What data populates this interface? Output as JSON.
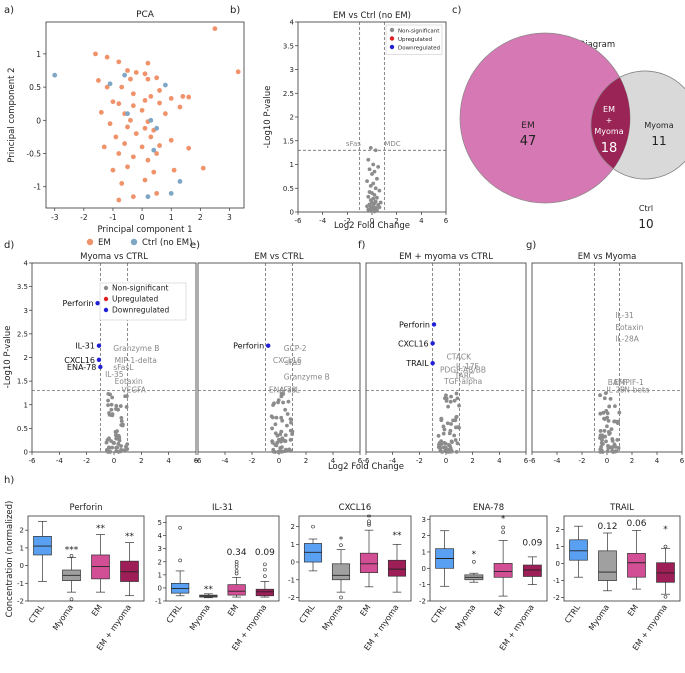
{
  "panel_letters": [
    "a)",
    "b)",
    "c)",
    "d)",
    "e)",
    "f)",
    "g)",
    "h)"
  ],
  "colors": {
    "em": "#f0926a",
    "ctrl_pca": "#7ea7c6",
    "nonsig": "#8c8c8c",
    "up": "#e02020",
    "down": "#1f1fd6",
    "venn_em": "#d678b3",
    "venn_overlap": "#9b2457",
    "venn_myoma": "#d9d9d9",
    "box_ctrl": "#5aa0f2",
    "box_myoma": "#a0a0a0",
    "box_em": "#d24f96",
    "box_emmyoma": "#9e1e57"
  },
  "pca": {
    "title": "PCA",
    "xlabel": "Principal component 1",
    "ylabel": "Principal component 2",
    "xticks": [
      -3,
      -2,
      -1,
      0,
      1,
      2,
      3
    ],
    "yticks": [
      1.0,
      0.5,
      0.0,
      -0.5,
      -1.0
    ],
    "xlim": [
      -3.3,
      3.5
    ],
    "ylim": [
      -1.32,
      1.48
    ],
    "legend": [
      "EM",
      "Ctrl (no EM)"
    ],
    "em_points": [
      [
        2.5,
        1.38
      ],
      [
        -1.6,
        1.0
      ],
      [
        -1.2,
        0.95
      ],
      [
        -0.8,
        0.88
      ],
      [
        0.2,
        0.86
      ],
      [
        -0.5,
        0.75
      ],
      [
        -0.2,
        0.72
      ],
      [
        0.1,
        0.7
      ],
      [
        3.3,
        0.73
      ],
      [
        -1.5,
        0.6
      ],
      [
        -1.2,
        0.5
      ],
      [
        -0.4,
        0.62
      ],
      [
        0.5,
        0.64
      ],
      [
        0.2,
        0.62
      ],
      [
        -0.7,
        0.5
      ],
      [
        0.6,
        0.45
      ],
      [
        -0.3,
        0.4
      ],
      [
        0.3,
        0.36
      ],
      [
        1.4,
        0.36
      ],
      [
        1.6,
        0.35
      ],
      [
        1.0,
        0.33
      ],
      [
        -1.0,
        0.28
      ],
      [
        -0.8,
        0.25
      ],
      [
        -0.3,
        0.22
      ],
      [
        0.1,
        0.3
      ],
      [
        0.6,
        0.26
      ],
      [
        1.3,
        0.2
      ],
      [
        -1.4,
        0.12
      ],
      [
        -0.6,
        0.1
      ],
      [
        0.0,
        0.15
      ],
      [
        0.8,
        0.1
      ],
      [
        -0.4,
        0.0
      ],
      [
        0.2,
        -0.02
      ],
      [
        -1.1,
        -0.05
      ],
      [
        -0.5,
        -0.1
      ],
      [
        0.1,
        -0.12
      ],
      [
        0.4,
        -0.15
      ],
      [
        -0.9,
        -0.25
      ],
      [
        -0.2,
        -0.2
      ],
      [
        0.3,
        -0.25
      ],
      [
        1.0,
        -0.3
      ],
      [
        -1.3,
        -0.4
      ],
      [
        -0.6,
        -0.35
      ],
      [
        0.0,
        -0.4
      ],
      [
        0.6,
        -0.38
      ],
      [
        1.6,
        -0.42
      ],
      [
        -0.8,
        -0.5
      ],
      [
        -0.3,
        -0.55
      ],
      [
        0.2,
        -0.6
      ],
      [
        -1.0,
        -0.75
      ],
      [
        -0.5,
        -0.7
      ],
      [
        0.4,
        -0.78
      ],
      [
        -0.7,
        -0.95
      ],
      [
        0.1,
        -0.9
      ],
      [
        0.5,
        -1.1
      ],
      [
        -0.3,
        -1.15
      ],
      [
        -0.8,
        -1.2
      ],
      [
        2.1,
        -0.72
      ],
      [
        1.1,
        -0.75
      ],
      [
        0.5,
        -0.5
      ]
    ],
    "ctrl_points": [
      [
        -3.0,
        0.68
      ],
      [
        -0.6,
        0.68
      ],
      [
        0.8,
        0.53
      ],
      [
        -0.5,
        0.1
      ],
      [
        0.3,
        0.0
      ],
      [
        0.5,
        -0.12
      ],
      [
        0.4,
        -0.45
      ],
      [
        1.3,
        -0.92
      ],
      [
        1.0,
        -1.1
      ],
      [
        0.2,
        -1.15
      ],
      [
        -1.1,
        0.55
      ]
    ]
  },
  "volcano_b": {
    "title": "EM vs Ctrl (no EM)",
    "xlabel": "Log2 Fold Change",
    "ylabel": "-Log10 P-value",
    "xticks": [
      -6,
      -4,
      -2,
      0,
      2,
      4,
      6
    ],
    "yticks": [
      0.0,
      0.5,
      1.0,
      1.5,
      2.0,
      2.5,
      3.0,
      3.5,
      4.0
    ],
    "xlim": [
      -6,
      6
    ],
    "ylim": [
      0,
      4.0
    ],
    "threshold_y": 1.3,
    "threshold_x": [
      -1,
      1
    ],
    "legend": [
      "Non-significant",
      "Upregulated",
      "Downregulated"
    ],
    "labels": [
      {
        "text": "sFas",
        "x": -0.9,
        "y": 1.35
      },
      {
        "text": "MDC",
        "x": 1.0,
        "y": 1.35
      }
    ],
    "points": [
      [
        -0.1,
        1.35
      ],
      [
        0.3,
        1.3
      ],
      [
        -0.3,
        1.1
      ],
      [
        0.1,
        1.0
      ],
      [
        0.5,
        0.95
      ],
      [
        -0.2,
        0.9
      ],
      [
        0.2,
        0.85
      ],
      [
        0.0,
        0.8
      ],
      [
        0.4,
        0.7
      ],
      [
        -0.4,
        0.65
      ],
      [
        0.1,
        0.6
      ],
      [
        -0.1,
        0.55
      ],
      [
        0.3,
        0.5
      ],
      [
        0.6,
        0.45
      ],
      [
        -0.2,
        0.42
      ],
      [
        0.0,
        0.4
      ],
      [
        0.2,
        0.36
      ],
      [
        -0.3,
        0.32
      ],
      [
        0.4,
        0.3
      ],
      [
        0.1,
        0.28
      ],
      [
        -0.1,
        0.25
      ],
      [
        0.3,
        0.22
      ],
      [
        0.0,
        0.2
      ],
      [
        0.2,
        0.18
      ],
      [
        -0.2,
        0.16
      ],
      [
        0.5,
        0.15
      ],
      [
        0.1,
        0.13
      ],
      [
        -0.1,
        0.1
      ],
      [
        0.3,
        0.09
      ],
      [
        0.0,
        0.07
      ],
      [
        0.2,
        0.06
      ],
      [
        -0.3,
        0.05
      ],
      [
        0.4,
        0.04
      ],
      [
        0.1,
        0.03
      ],
      [
        -0.1,
        0.02
      ],
      [
        0.2,
        0.01
      ],
      [
        0.0,
        0.05
      ],
      [
        0.6,
        0.1
      ],
      [
        -0.4,
        0.12
      ],
      [
        0.7,
        0.2
      ]
    ]
  },
  "venn": {
    "title": "Venn Diagram",
    "em_label": "EM",
    "em_count": "47",
    "overlap_label_1": "EM",
    "overlap_label_2": "+",
    "overlap_label_3": "Myoma",
    "overlap_count": "18",
    "myoma_label": "Myoma",
    "myoma_count": "11",
    "ctrl_label": "Ctrl",
    "ctrl_count": "10"
  },
  "volcano_row": {
    "xlabel": "Log2 Fold Change",
    "ylabel": "-Log10 P-value",
    "xticks": [
      -6,
      -4,
      -2,
      0,
      2,
      4,
      6
    ],
    "yticks": [
      0.0,
      0.5,
      1.0,
      1.5,
      2.0,
      2.5,
      3.0,
      3.5,
      4.0
    ],
    "xlim": [
      -6,
      6
    ],
    "ylim": [
      0,
      4.0
    ],
    "threshold_y": 1.3,
    "threshold_x": [
      -1,
      1
    ],
    "legend": [
      "Non-significant",
      "Upregulated",
      "Downregulated"
    ],
    "panels": [
      {
        "title": "Myoma vs CTRL",
        "down": [
          [
            -1.2,
            3.15
          ],
          [
            -1.1,
            2.25
          ],
          [
            -1.1,
            1.95
          ],
          [
            -1.0,
            1.8
          ]
        ],
        "black_labels": [
          {
            "text": "Perforin",
            "x": -1.2,
            "y": 3.15
          },
          {
            "text": "IL-31",
            "x": -1.1,
            "y": 2.25
          },
          {
            "text": "CXCL16",
            "x": -1.1,
            "y": 1.95
          },
          {
            "text": "ENA-78",
            "x": -1.0,
            "y": 1.8
          }
        ],
        "gray_labels": [
          {
            "text": "Granzyme B",
            "x": -0.2,
            "y": 2.2
          },
          {
            "text": "MIP-1-delta",
            "x": -0.1,
            "y": 1.95
          },
          {
            "text": "sFasL",
            "x": -0.2,
            "y": 1.8
          },
          {
            "text": "IL-35",
            "x": -0.8,
            "y": 1.65
          },
          {
            "text": "Eotaxin",
            "x": -0.1,
            "y": 1.5
          },
          {
            "text": "VEGFA",
            "x": 0.4,
            "y": 1.32
          }
        ]
      },
      {
        "title": "EM vs CTRL",
        "down": [
          [
            -0.8,
            2.25
          ]
        ],
        "black_labels": [
          {
            "text": "Perforin",
            "x": -0.8,
            "y": 2.25
          }
        ],
        "gray_labels": [
          {
            "text": "GCP-2",
            "x": 0.2,
            "y": 2.2
          },
          {
            "text": "CXCL16",
            "x": -0.6,
            "y": 1.95
          },
          {
            "text": "sFas",
            "x": 0.3,
            "y": 1.9
          },
          {
            "text": "Granzyme B",
            "x": 0.2,
            "y": 1.6
          },
          {
            "text": "ENA-78",
            "x": -0.9,
            "y": 1.32
          },
          {
            "text": "sFasL",
            "x": -0.1,
            "y": 1.32
          }
        ]
      },
      {
        "title": "EM + myoma vs CTRL",
        "down": [
          [
            -0.9,
            2.7
          ],
          [
            -1.0,
            2.3
          ],
          [
            -1.0,
            1.88
          ]
        ],
        "black_labels": [
          {
            "text": "Perforin",
            "x": -0.9,
            "y": 2.7
          },
          {
            "text": "CXCL16",
            "x": -1.0,
            "y": 2.3
          },
          {
            "text": "TRAIL",
            "x": -1.0,
            "y": 1.88
          }
        ],
        "gray_labels": [
          {
            "text": "CTACK",
            "x": -0.1,
            "y": 2.02
          },
          {
            "text": "IL-17F",
            "x": 0.6,
            "y": 1.82
          },
          {
            "text": "PDGF-AB/BB",
            "x": -0.6,
            "y": 1.75
          },
          {
            "text": "TARC",
            "x": 0.5,
            "y": 1.62
          },
          {
            "text": "TGF-alpha",
            "x": -0.3,
            "y": 1.5
          }
        ]
      },
      {
        "title": "EM vs Myoma",
        "down": [],
        "black_labels": [],
        "gray_labels": [
          {
            "text": "IL-31",
            "x": 0.5,
            "y": 2.9
          },
          {
            "text": "Eotaxin",
            "x": 0.5,
            "y": 2.65
          },
          {
            "text": "IL-28A",
            "x": 0.5,
            "y": 2.4
          },
          {
            "text": "BAFF",
            "x": -0.1,
            "y": 1.48
          },
          {
            "text": "EMPIF-1",
            "x": 0.4,
            "y": 1.48
          },
          {
            "text": "IL-29",
            "x": -0.2,
            "y": 1.32
          },
          {
            "text": "IFN-beta",
            "x": 0.7,
            "y": 1.32
          }
        ]
      }
    ]
  },
  "boxplots": {
    "ylabel": "Concentration (normalized)",
    "categories": [
      "CTRL",
      "Myoma",
      "EM",
      "EM + myoma"
    ],
    "panels": [
      {
        "title": "Perforin",
        "ylim": [
          -2.0,
          2.8
        ],
        "boxes": [
          {
            "min": -0.9,
            "q1": 0.6,
            "med": 1.1,
            "q3": 1.65,
            "max": 2.5,
            "out": []
          },
          {
            "min": -1.5,
            "q1": -0.85,
            "med": -0.55,
            "q3": -0.25,
            "max": 0.45,
            "out": [
              0.55,
              -1.9
            ]
          },
          {
            "min": -1.5,
            "q1": -0.75,
            "med": -0.05,
            "q3": 0.6,
            "max": 1.75,
            "out": []
          },
          {
            "min": -1.7,
            "q1": -0.9,
            "med": -0.35,
            "q3": 0.25,
            "max": 1.3,
            "out": []
          }
        ],
        "annotations": [
          {
            "cat": 1,
            "text": "***",
            "y": 0.75
          },
          {
            "cat": 2,
            "text": "**",
            "y": 1.95
          },
          {
            "cat": 3,
            "text": "**",
            "y": 1.5
          }
        ]
      },
      {
        "title": "IL-31",
        "ylim": [
          -1.0,
          5.5
        ],
        "boxes": [
          {
            "min": -0.6,
            "q1": -0.4,
            "med": -0.05,
            "q3": 0.35,
            "max": 1.3,
            "out": [
              4.6,
              2.1
            ]
          },
          {
            "min": -0.75,
            "q1": -0.7,
            "med": -0.62,
            "q3": -0.55,
            "max": -0.45,
            "out": []
          },
          {
            "min": -0.7,
            "q1": -0.55,
            "med": -0.25,
            "q3": 0.25,
            "max": 0.8,
            "out": [
              1.6,
              1.8,
              2.0,
              1.3,
              1.1
            ]
          },
          {
            "min": -0.7,
            "q1": -0.6,
            "med": -0.3,
            "q3": -0.1,
            "max": 0.5,
            "out": [
              1.4,
              1.8,
              0.9
            ]
          }
        ],
        "annotations": [
          {
            "cat": 1,
            "text": "**",
            "y": -0.3
          },
          {
            "cat": 2,
            "text": "0.34",
            "y": 2.5
          },
          {
            "cat": 3,
            "text": "0.09",
            "y": 2.5
          }
        ]
      },
      {
        "title": "CXCL16",
        "ylim": [
          -2.2,
          2.6
        ],
        "boxes": [
          {
            "min": -0.5,
            "q1": 0.0,
            "med": 0.55,
            "q3": 1.05,
            "max": 1.3,
            "out": [
              2.0
            ]
          },
          {
            "min": -1.7,
            "q1": -1.0,
            "med": -0.75,
            "q3": -0.1,
            "max": 0.7,
            "out": [
              -2.0,
              0.95
            ]
          },
          {
            "min": -1.4,
            "q1": -0.6,
            "med": -0.1,
            "q3": 0.5,
            "max": 1.8,
            "out": [
              2.1,
              2.2,
              2.3
            ]
          },
          {
            "min": -1.7,
            "q1": -0.8,
            "med": -0.4,
            "q3": 0.1,
            "max": 1.0,
            "out": []
          }
        ],
        "annotations": [
          {
            "cat": 1,
            "text": "*",
            "y": 1.1
          },
          {
            "cat": 2,
            "text": "*",
            "y": 2.35
          },
          {
            "cat": 3,
            "text": "**",
            "y": 1.35
          }
        ]
      },
      {
        "title": "ENA-78",
        "ylim": [
          -2.0,
          3.2
        ],
        "boxes": [
          {
            "min": -1.1,
            "q1": 0.0,
            "med": 0.6,
            "q3": 1.2,
            "max": 2.3,
            "out": []
          },
          {
            "min": -0.85,
            "q1": -0.7,
            "med": -0.55,
            "q3": -0.4,
            "max": -0.3,
            "out": [
              0.4
            ]
          },
          {
            "min": -1.7,
            "q1": -0.55,
            "med": -0.2,
            "q3": 0.3,
            "max": 1.7,
            "out": [
              2.2,
              2.5
            ]
          },
          {
            "min": -1.0,
            "q1": -0.5,
            "med": -0.1,
            "q3": 0.2,
            "max": 0.7,
            "out": []
          }
        ],
        "annotations": [
          {
            "cat": 1,
            "text": "*",
            "y": 0.7
          },
          {
            "cat": 2,
            "text": "*",
            "y": 2.85
          },
          {
            "cat": 3,
            "text": "0.09",
            "y": 1.4
          }
        ]
      },
      {
        "title": "TRAIL",
        "ylim": [
          -2.2,
          2.8
        ],
        "boxes": [
          {
            "min": -0.8,
            "q1": 0.2,
            "med": 0.75,
            "q3": 1.4,
            "max": 2.2,
            "out": []
          },
          {
            "min": -1.6,
            "q1": -1.0,
            "med": -0.5,
            "q3": 0.75,
            "max": 1.8,
            "out": []
          },
          {
            "min": -1.5,
            "q1": -0.8,
            "med": 0.05,
            "q3": 0.6,
            "max": 1.95,
            "out": []
          },
          {
            "min": -1.8,
            "q1": -1.1,
            "med": -0.55,
            "q3": 0.05,
            "max": 0.9,
            "out": [
              1.0,
              -1.95
            ]
          }
        ],
        "annotations": [
          {
            "cat": 1,
            "text": "0.12",
            "y": 2.05
          },
          {
            "cat": 2,
            "text": "0.06",
            "y": 2.2
          },
          {
            "cat": 3,
            "text": "*",
            "y": 1.85
          }
        ]
      }
    ]
  }
}
